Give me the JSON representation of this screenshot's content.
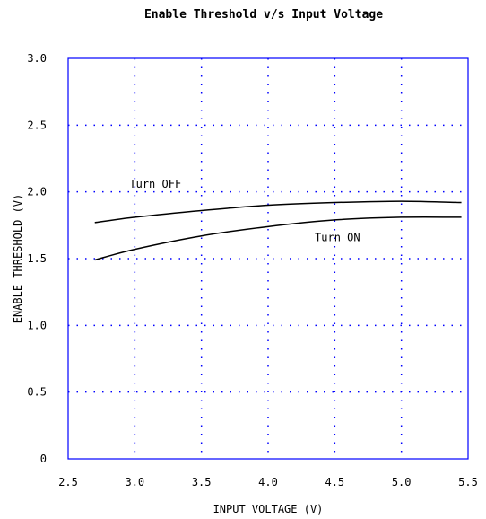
{
  "chart_data": {
    "type": "line",
    "title": "Enable Threshold v/s Input Voltage",
    "xlabel": "INPUT VOLTAGE (V)",
    "ylabel": "ENABLE THRESHOLD (V)",
    "xlim": [
      2.5,
      5.5
    ],
    "ylim": [
      0,
      3.0
    ],
    "x_ticks": [
      "2.5",
      "3.0",
      "3.5",
      "4.0",
      "4.5",
      "5.0",
      "5.5"
    ],
    "y_ticks": [
      "0",
      "0.5",
      "1.0",
      "1.5",
      "2.0",
      "2.5",
      "3.0"
    ],
    "grid": true,
    "grid_color": "#0000ff",
    "frame_color": "#0000ff",
    "line_color": "#000000",
    "series": [
      {
        "name": "Turn OFF",
        "x": [
          2.7,
          3.0,
          3.5,
          4.0,
          4.5,
          5.0,
          5.45
        ],
        "y": [
          1.77,
          1.81,
          1.86,
          1.9,
          1.92,
          1.93,
          1.92
        ]
      },
      {
        "name": "Turn ON",
        "x": [
          2.7,
          3.0,
          3.5,
          4.0,
          4.5,
          5.0,
          5.45
        ],
        "y": [
          1.49,
          1.57,
          1.67,
          1.74,
          1.79,
          1.81,
          1.81
        ]
      }
    ],
    "annotations": [
      {
        "text": "Turn OFF",
        "x": 2.96,
        "y": 2.03
      },
      {
        "text": "Turn ON",
        "x": 4.35,
        "y": 1.63
      }
    ]
  }
}
